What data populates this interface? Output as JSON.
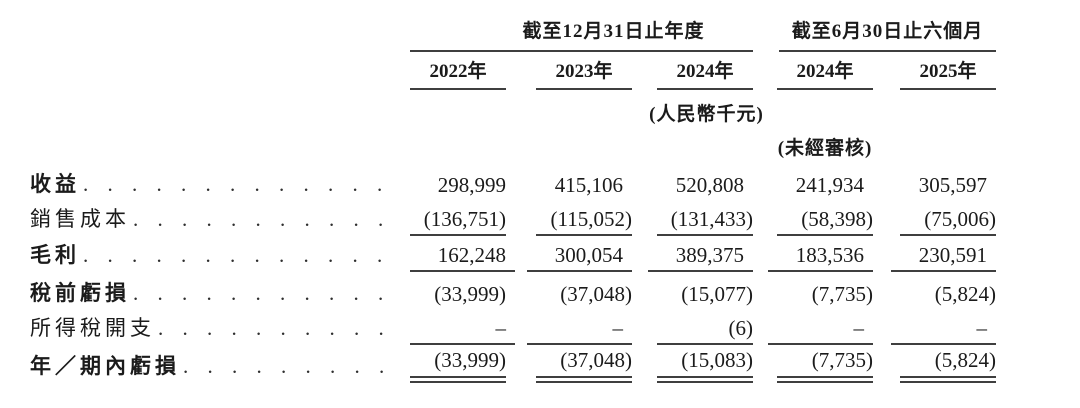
{
  "page": {
    "background_color": "#ffffff",
    "text_color": "#1b1b1b",
    "rule_color": "#3f3f3f"
  },
  "table": {
    "dot_leader": ".",
    "column_groups": [
      {
        "title": "截至12月31日止年度",
        "columns": [
          "2022年",
          "2023年",
          "2024年"
        ]
      },
      {
        "title": "截至6月30日止六個月",
        "columns": [
          "2024年",
          "2025年"
        ]
      }
    ],
    "unit_note": "(人民幣千元)",
    "unaudited_note": "(未經審核)",
    "rows": [
      {
        "label": "收益",
        "emphasis": true,
        "rule_below": "none",
        "values": [
          "298,999",
          "415,106",
          "520,808",
          "241,934",
          "305,597"
        ]
      },
      {
        "label": "銷售成本",
        "emphasis": false,
        "rule_below": "single",
        "values": [
          "(136,751)",
          "(115,052)",
          "(131,433)",
          "(58,398)",
          "(75,006)"
        ]
      },
      {
        "label": "毛利",
        "emphasis": true,
        "rule_below": "single",
        "values": [
          "162,248",
          "300,054",
          "389,375",
          "183,536",
          "230,591"
        ]
      },
      {
        "label": "稅前虧損",
        "emphasis": true,
        "rule_below": "none",
        "values": [
          "(33,999)",
          "(37,048)",
          "(15,077)",
          "(7,735)",
          "(5,824)"
        ]
      },
      {
        "label": "所得稅開支",
        "emphasis": false,
        "rule_below": "single",
        "values": [
          "–",
          "–",
          "(6)",
          "–",
          "–"
        ]
      },
      {
        "label": "年／期內虧損",
        "emphasis": true,
        "rule_below": "double",
        "values": [
          "(33,999)",
          "(37,048)",
          "(15,083)",
          "(7,735)",
          "(5,824)"
        ]
      }
    ]
  }
}
